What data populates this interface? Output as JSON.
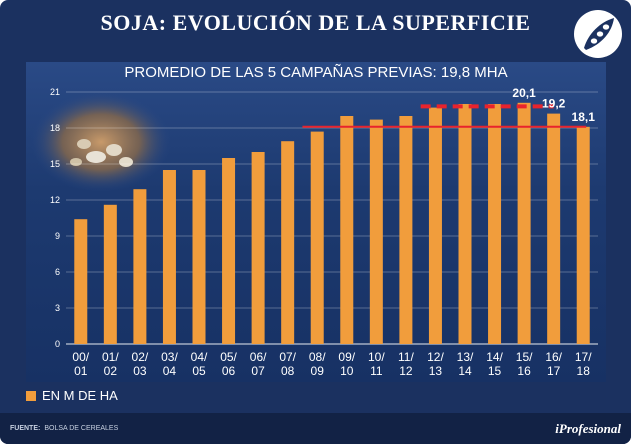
{
  "title": "SOJA: EVOLUCIÓN DE LA SUPERFICIE",
  "chart_data": {
    "type": "bar",
    "subtitle": "PROMEDIO DE LAS 5 CAMPAÑAS PREVIAS: 19,8 MHA",
    "categories_top": [
      "00/",
      "01/",
      "02/",
      "03/",
      "04/",
      "05/",
      "06/",
      "07/",
      "08/",
      "09/",
      "10/",
      "11/",
      "12/",
      "13/",
      "14/",
      "15/",
      "16/",
      "17/"
    ],
    "categories_bottom": [
      "01",
      "02",
      "03",
      "04",
      "05",
      "06",
      "07",
      "08",
      "09",
      "10",
      "11",
      "12",
      "13",
      "14",
      "15",
      "16",
      "17",
      "18"
    ],
    "values": [
      10.4,
      11.6,
      12.9,
      14.5,
      14.5,
      15.5,
      16.0,
      16.9,
      17.7,
      19.0,
      18.7,
      19.0,
      19.7,
      20.0,
      20.0,
      20.1,
      19.2,
      18.1
    ],
    "data_labels": [
      {
        "index": 15,
        "text": "20,1"
      },
      {
        "index": 16,
        "text": "19,2"
      },
      {
        "index": 17,
        "text": "18,1"
      }
    ],
    "ylim": [
      0,
      21
    ],
    "yticks": [
      "0",
      "3",
      "6",
      "9",
      "12",
      "15",
      "18",
      "21"
    ],
    "reference_lines": [
      {
        "name": "previous-5-average",
        "value": 19.8,
        "from_index": 12,
        "to_index": 16,
        "style": "dashed",
        "color": "#e8232d"
      },
      {
        "name": "current-level",
        "value": 18.1,
        "from_index": 8,
        "to_index": 17,
        "style": "solid",
        "color": "#e8232d"
      }
    ],
    "bar_color": "#f19d3c",
    "legend": "EN M DE HA"
  },
  "footer": {
    "source_label": "FUENTE:",
    "source_value": "BOLSA DE CEREALES",
    "brand": "iProfesional"
  }
}
